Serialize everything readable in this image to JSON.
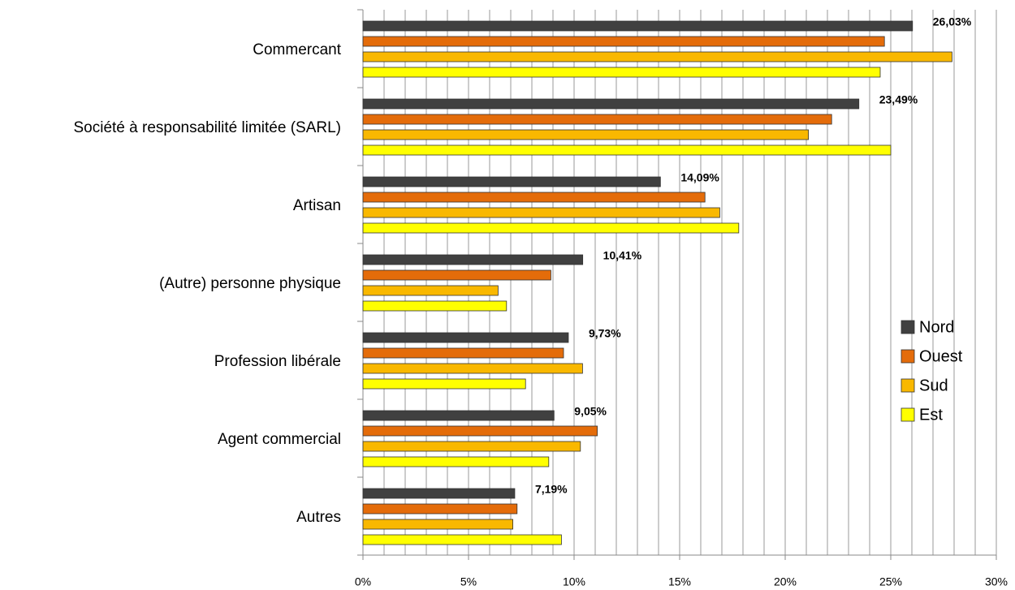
{
  "chart_data": {
    "type": "hbar",
    "categories": [
      "Commercant",
      "Société à responsabilité limitée (SARL)",
      "Artisan",
      "(Autre) personne physique",
      "Profession libérale",
      "Agent commercial",
      "Autres"
    ],
    "series": [
      {
        "name": "Nord",
        "color": "#404040",
        "values": [
          26.03,
          23.49,
          14.09,
          10.41,
          9.73,
          9.05,
          7.19
        ],
        "value_labels": [
          "26,03%",
          "23,49%",
          "14,09%",
          "10,41%",
          "9,73%",
          "9,05%",
          "7,19%"
        ]
      },
      {
        "name": "Ouest",
        "color": "#e46c0a",
        "values": [
          24.7,
          22.2,
          16.2,
          8.9,
          9.5,
          11.1,
          7.3
        ]
      },
      {
        "name": "Sud",
        "color": "#f9b800",
        "values": [
          27.9,
          21.1,
          16.9,
          6.4,
          10.4,
          10.3,
          7.1
        ]
      },
      {
        "name": "Est",
        "color": "#ffff00",
        "values": [
          24.5,
          25.0,
          17.8,
          6.8,
          7.7,
          8.8,
          9.4
        ]
      }
    ],
    "xlim": [
      0,
      30
    ],
    "xticks": [
      {
        "value": 0,
        "label": "0%"
      },
      {
        "value": 5,
        "label": "5%"
      },
      {
        "value": 10,
        "label": "10%"
      },
      {
        "value": 15,
        "label": "15%"
      },
      {
        "value": 20,
        "label": "20%"
      },
      {
        "value": 25,
        "label": "25%"
      },
      {
        "value": 30,
        "label": "30%"
      }
    ],
    "minor_xticks": [
      1,
      2,
      3,
      4,
      6,
      7,
      8,
      9,
      11,
      12,
      13,
      14,
      16,
      17,
      18,
      19,
      21,
      22,
      23,
      24,
      26,
      27,
      28,
      29
    ],
    "grid": true,
    "legend": "right"
  }
}
